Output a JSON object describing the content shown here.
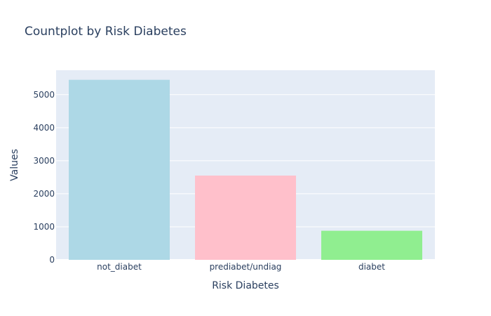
{
  "chart_data": {
    "type": "bar",
    "title": "Countplot by Risk Diabetes",
    "xlabel": "Risk Diabetes",
    "ylabel": "Values",
    "categories": [
      "not_diabet",
      "prediabet/undiag",
      "diabet"
    ],
    "values": [
      5450,
      2550,
      880
    ],
    "colors": [
      "#add8e6",
      "#ffc0cb",
      "#90ee90"
    ],
    "ylim": [
      0,
      5740
    ],
    "yticks": [
      0,
      1000,
      2000,
      3000,
      4000,
      5000
    ],
    "grid": true,
    "legend": "none",
    "plot_background": "#e5ecf6"
  }
}
